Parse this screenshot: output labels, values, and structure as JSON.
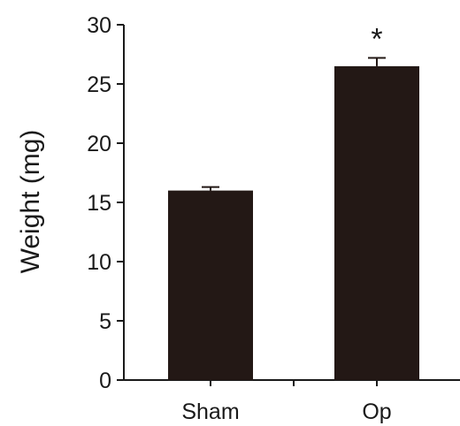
{
  "chart_data": {
    "type": "bar",
    "title": "",
    "xlabel": "",
    "ylabel": "Weight (mg)",
    "categories": [
      "Sham",
      "Op"
    ],
    "values": [
      16,
      26.5
    ],
    "error": [
      0.3,
      0.7
    ],
    "annotations": [
      "",
      "*"
    ],
    "ylim": [
      0,
      30
    ],
    "yticks": [
      0,
      5,
      10,
      15,
      20,
      25,
      30
    ],
    "grid": false,
    "bar_color": "#231815"
  }
}
